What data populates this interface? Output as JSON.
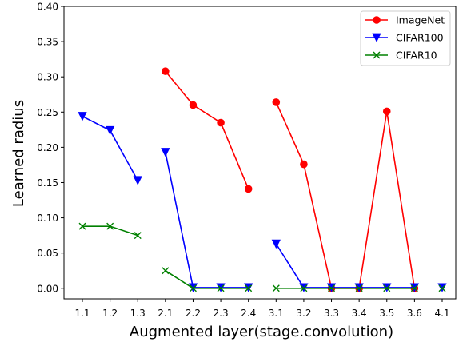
{
  "chart_data": {
    "type": "line",
    "xlabel": "Augmented layer(stage.convolution)",
    "ylabel": "Learned radius",
    "ylim": [
      -0.015,
      0.4
    ],
    "yticks": [
      0.0,
      0.05,
      0.1,
      0.15,
      0.2,
      0.25,
      0.3,
      0.35,
      0.4
    ],
    "categories": [
      "1.1",
      "1.2",
      "1.3",
      "2.1",
      "2.2",
      "2.3",
      "2.4",
      "3.1",
      "3.2",
      "3.3",
      "3.4",
      "3.5",
      "3.6",
      "4.1"
    ],
    "grid": false,
    "legend_position": "top-right",
    "series": [
      {
        "name": "ImageNet",
        "color": "#ff0000",
        "marker": "circle",
        "segments": [
          {
            "x": [
              "2.1",
              "2.2",
              "2.3",
              "2.4"
            ],
            "y": [
              0.308,
              0.26,
              0.235,
              0.141
            ]
          },
          {
            "x": [
              "3.1",
              "3.2",
              "3.3",
              "3.4",
              "3.5",
              "3.6"
            ],
            "y": [
              0.264,
              0.176,
              0.0,
              0.0,
              0.251,
              0.0
            ]
          }
        ]
      },
      {
        "name": "CIFAR100",
        "color": "#0000ff",
        "marker": "triangle-down",
        "segments": [
          {
            "x": [
              "1.1",
              "1.2",
              "1.3"
            ],
            "y": [
              0.244,
              0.224,
              0.153
            ]
          },
          {
            "x": [
              "2.1",
              "2.2",
              "2.3",
              "2.4"
            ],
            "y": [
              0.193,
              0.001,
              0.001,
              0.001
            ]
          },
          {
            "x": [
              "3.1",
              "3.2",
              "3.3",
              "3.4",
              "3.5",
              "3.6"
            ],
            "y": [
              0.063,
              0.001,
              0.001,
              0.001,
              0.001,
              0.001
            ]
          },
          {
            "x": [
              "4.1"
            ],
            "y": [
              0.001
            ]
          }
        ]
      },
      {
        "name": "CIFAR10",
        "color": "#008000",
        "marker": "x",
        "segments": [
          {
            "x": [
              "1.1",
              "1.2",
              "1.3"
            ],
            "y": [
              0.088,
              0.088,
              0.075
            ]
          },
          {
            "x": [
              "2.1",
              "2.2",
              "2.3",
              "2.4"
            ],
            "y": [
              0.025,
              0.0,
              0.0,
              0.0
            ]
          },
          {
            "x": [
              "3.1",
              "3.2",
              "3.3",
              "3.4",
              "3.5",
              "3.6"
            ],
            "y": [
              0.0,
              0.0,
              0.0,
              0.0,
              0.0,
              0.0
            ]
          },
          {
            "x": [
              "4.1"
            ],
            "y": [
              0.0
            ]
          }
        ]
      }
    ]
  }
}
